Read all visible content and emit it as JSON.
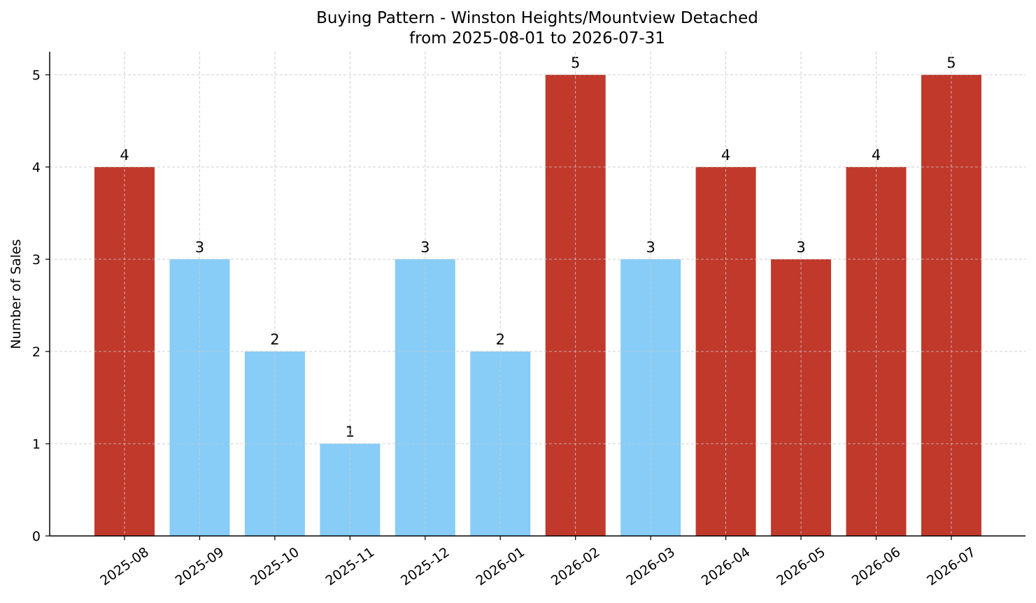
{
  "chart_data": {
    "type": "bar",
    "title": "Buying Pattern - Winston Heights/Mountview Detached",
    "subtitle": "from 2025-08-01 to 2026-07-31",
    "xlabel": "",
    "ylabel": "Number of Sales",
    "categories": [
      "2025-08",
      "2025-09",
      "2025-10",
      "2025-11",
      "2025-12",
      "2026-01",
      "2026-02",
      "2026-03",
      "2026-04",
      "2026-05",
      "2026-06",
      "2026-07"
    ],
    "values": [
      4,
      3,
      2,
      1,
      3,
      2,
      5,
      3,
      4,
      3,
      4,
      5
    ],
    "bar_colors": [
      "#c0392b",
      "#87cdf7",
      "#87cdf7",
      "#87cdf7",
      "#87cdf7",
      "#87cdf7",
      "#c0392b",
      "#87cdf7",
      "#c0392b",
      "#c0392b",
      "#c0392b",
      "#c0392b"
    ],
    "y_ticks": [
      0,
      1,
      2,
      3,
      4,
      5
    ],
    "ylim": [
      0,
      5.25
    ],
    "grid": true,
    "legend": "none"
  }
}
